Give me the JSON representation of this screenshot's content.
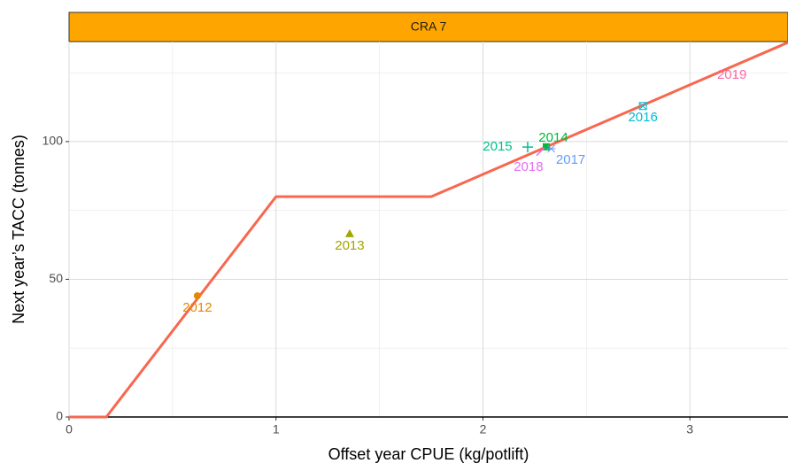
{
  "chart_data": {
    "type": "scatter",
    "strip": "CRA 7",
    "xlabel": "Offset year CPUE (kg/potlift)",
    "ylabel": "Next year’s TACC (tonnes)",
    "xlim": [
      0,
      3.474
    ],
    "ylim": [
      0,
      136.3
    ],
    "xticks": [
      0,
      1,
      2,
      3
    ],
    "yticks": [
      0,
      50,
      100
    ],
    "xminor": [
      0.5,
      1.5,
      2.5
    ],
    "yminor": [
      25,
      75,
      125
    ],
    "grid": true,
    "x": [
      0.62,
      1.356,
      2.306,
      2.216,
      2.773,
      2.33,
      2.28,
      3.22
    ],
    "values": [
      44,
      66.6,
      98.1,
      98,
      112.9,
      97.4,
      96.5,
      124
    ],
    "labels": [
      "2012",
      "2013",
      "2014",
      "2015",
      "2016",
      "2017",
      "2018",
      "2019"
    ],
    "colors": [
      "#E58700",
      "#A3A500",
      "#00BA38",
      "#00C08B",
      "#00BCD8",
      "#619CFF",
      "#E76BF3",
      "#FF67A4"
    ],
    "rule": {
      "x": [
        0,
        0.18,
        1,
        1.75,
        3.474
      ],
      "values": [
        0,
        0,
        80,
        80,
        136
      ],
      "color": "#F8674F"
    }
  }
}
